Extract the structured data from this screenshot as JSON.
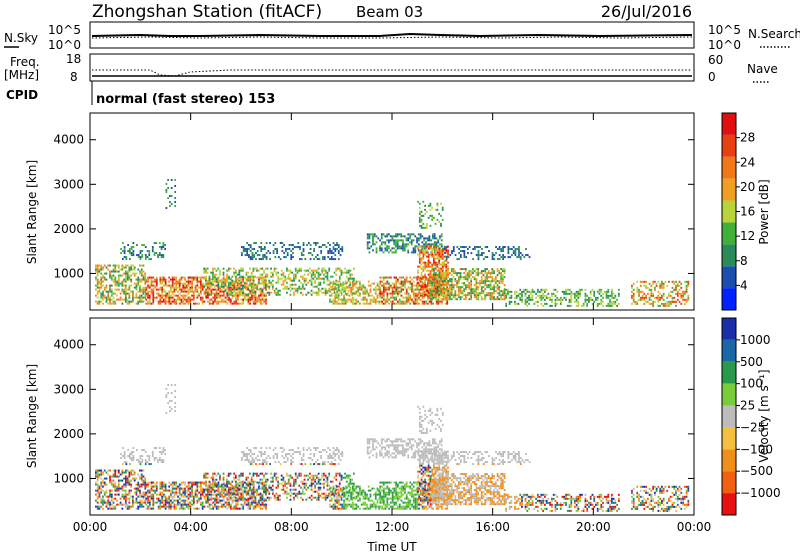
{
  "header": {
    "station": "Zhongshan Station (fitACF)",
    "beam": "Beam 03",
    "date": "26/Jul/2016"
  },
  "panels": {
    "nsky": {
      "left_label": "N.Sky",
      "left_ticks": [
        "10^5",
        "10^0"
      ],
      "right_label": "N.Search",
      "right_ticks": [
        "10^5",
        "10^0"
      ]
    },
    "freq": {
      "left_label_line1": "Freq.",
      "left_label_line2": "[MHz]",
      "left_ticks": [
        "18",
        "8"
      ],
      "right_label": "Nave",
      "right_ticks": [
        "60",
        "0"
      ]
    },
    "cpid": {
      "label": "CPID",
      "text": "normal (fast stereo) 153"
    }
  },
  "colors": {
    "power": [
      "#0022ff",
      "#1a4fb0",
      "#2a8a5a",
      "#3fb03a",
      "#b8d43a",
      "#f0a020",
      "#f07818",
      "#e84010",
      "#e01010"
    ],
    "velocity": [
      "#e81010",
      "#f06010",
      "#f0901a",
      "#f5c040",
      "#bcbcbc",
      "#7acc3a",
      "#2a9a4a",
      "#1a66a8",
      "#1a2ea8"
    ]
  },
  "chart_data": [
    {
      "type": "heatmap",
      "name": "Power",
      "ylabel": "Slant Range [km]",
      "ylim": [
        180,
        4600
      ],
      "yticks": [
        "1000",
        "2000",
        "3000",
        "4000"
      ],
      "ytick_values": [
        1000,
        2000,
        3000,
        4000
      ],
      "xlim": [
        0,
        24
      ],
      "colorbar_label": "Power [dB]",
      "colorbar_ticks": [
        "4",
        "8",
        "12",
        "16",
        "20",
        "24",
        "28"
      ],
      "colorbar_values": [
        4,
        8,
        12,
        16,
        20,
        24,
        28
      ],
      "colorbar_range": [
        0,
        32
      ]
    },
    {
      "type": "heatmap",
      "name": "Velocity",
      "ylabel": "Slant Range [km]",
      "ylim": [
        180,
        4600
      ],
      "yticks": [
        "1000",
        "2000",
        "3000",
        "4000"
      ],
      "ytick_values": [
        1000,
        2000,
        3000,
        4000
      ],
      "xlim": [
        0,
        24
      ],
      "xticks": [
        "00:00",
        "04:00",
        "08:00",
        "12:00",
        "16:00",
        "20:00",
        "00:00"
      ],
      "xtick_values": [
        0,
        4,
        8,
        12,
        16,
        20,
        24
      ],
      "xlabel": "Time UT",
      "colorbar_label": "Velocity [m s⁻¹]",
      "colorbar_ticks": [
        "1000",
        "500",
        "100",
        "25",
        "−25",
        "−100",
        "−500",
        "−1000"
      ]
    }
  ]
}
